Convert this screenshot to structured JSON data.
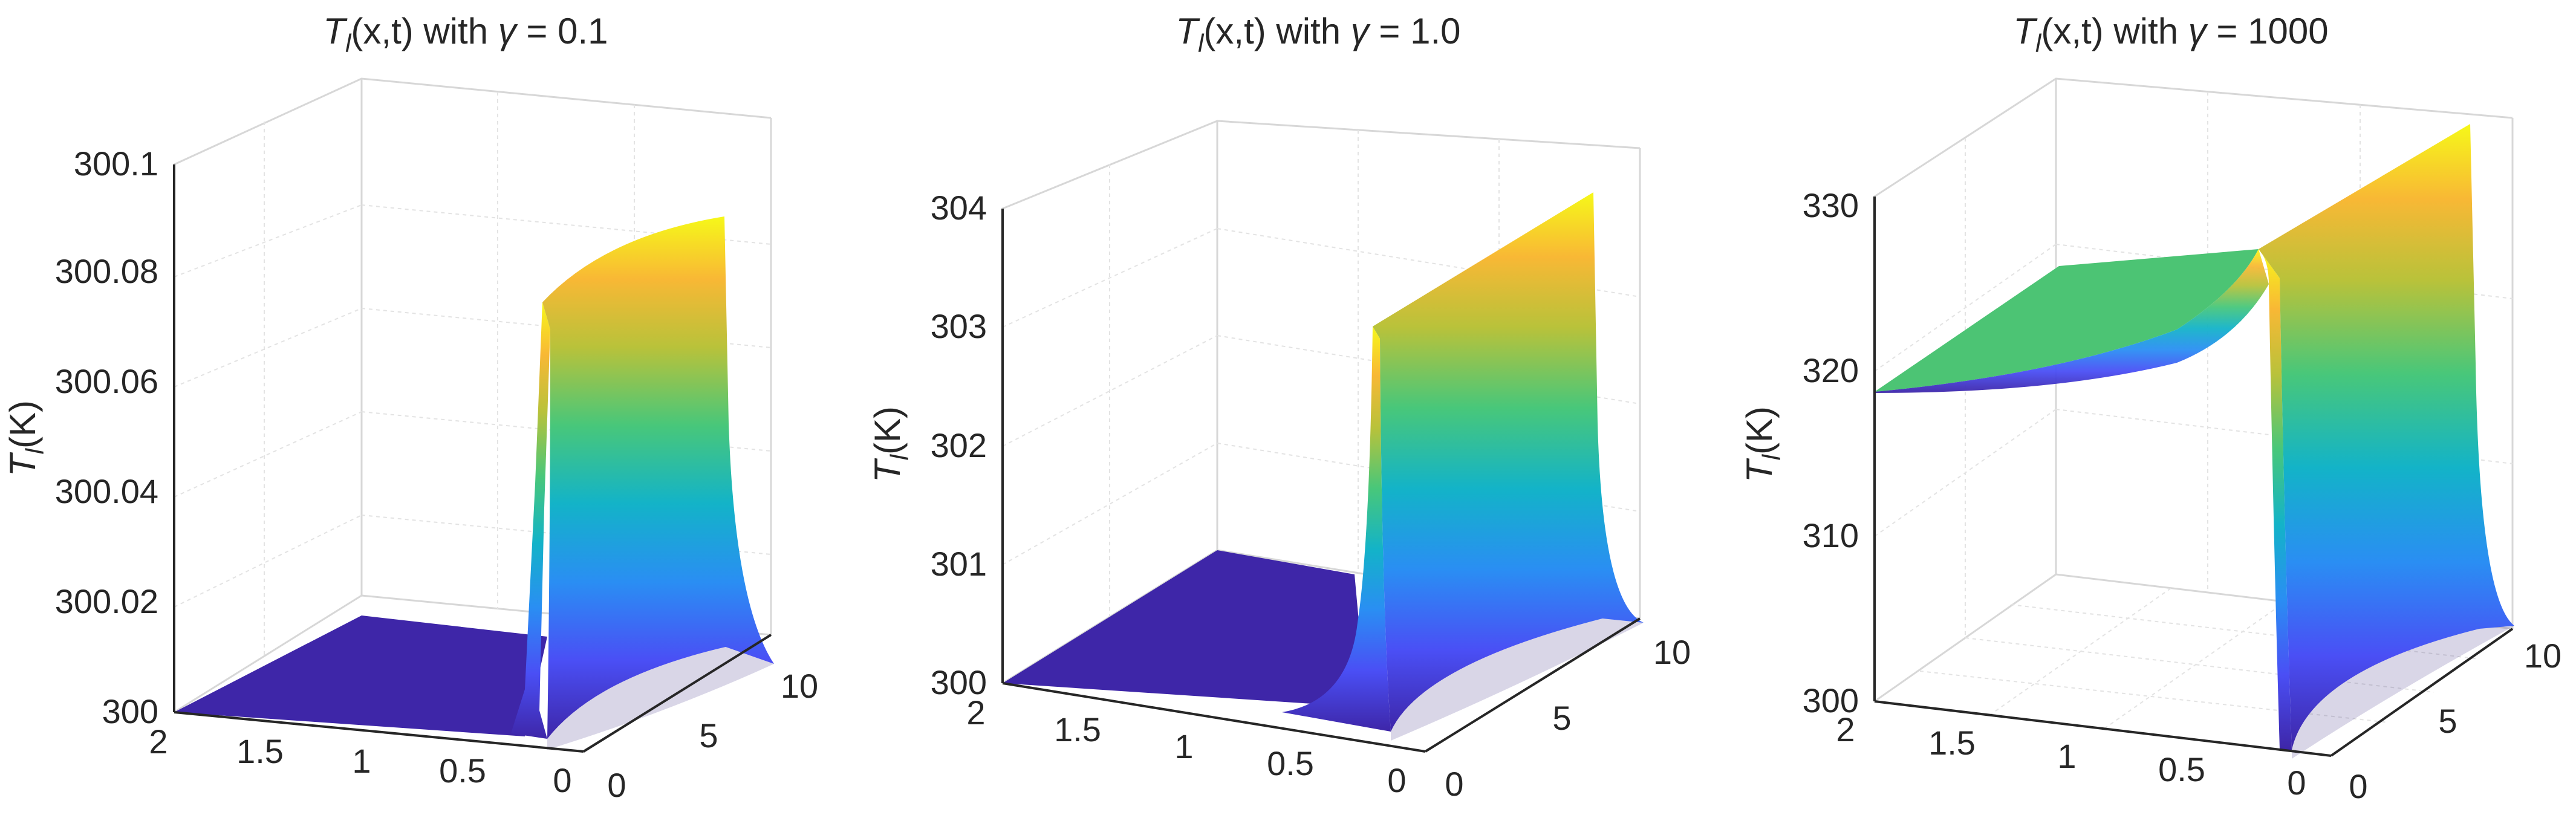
{
  "chart_data": [
    {
      "type": "surface",
      "title": {
        "prefix": "T",
        "sub": "l",
        "suffix": "(x,t) with ",
        "greek": "γ",
        "value": " = 0.1"
      },
      "zlabel": {
        "symbol": "T",
        "sub": "l",
        "unit": "(K)"
      },
      "x_ticks": [
        "2",
        "1.5",
        "1",
        "0.5",
        "0"
      ],
      "t_ticks": [
        "0",
        "5",
        "10"
      ],
      "z_ticks": [
        "300",
        "300.02",
        "300.04",
        "300.06",
        "300.08",
        "300.1"
      ],
      "xlim": [
        0,
        2
      ],
      "tlim": [
        0,
        10
      ],
      "zlim": [
        300,
        300.1
      ],
      "surface": {
        "base": 300,
        "pulse_peak_start": 300.074,
        "pulse_peak_end": 300.086,
        "tail_left_start": 300.0,
        "tail_left_end": 300.0
      }
    },
    {
      "type": "surface",
      "title": {
        "prefix": "T",
        "sub": "l",
        "suffix": "(x,t) with ",
        "greek": "γ",
        "value": " = 1.0"
      },
      "zlabel": {
        "symbol": "T",
        "sub": "l",
        "unit": "(K)"
      },
      "x_ticks": [
        "2",
        "1.5",
        "1",
        "0.5",
        "0"
      ],
      "t_ticks": [
        "0",
        "5",
        "10"
      ],
      "z_ticks": [
        "300",
        "301",
        "302",
        "303",
        "304"
      ],
      "xlim": [
        0,
        2
      ],
      "tlim": [
        0,
        10
      ],
      "zlim": [
        300,
        304
      ],
      "surface": {
        "base": 300,
        "pulse_peak_start": 303.0,
        "pulse_peak_end": 304.0,
        "tail_left_start": 300.0,
        "tail_left_end": 300.0
      }
    },
    {
      "type": "surface",
      "title": {
        "prefix": "T",
        "sub": "l",
        "suffix": "(x,t) with ",
        "greek": "γ",
        "value": " = 1000"
      },
      "zlabel": {
        "symbol": "T",
        "sub": "l",
        "unit": "(K)"
      },
      "x_ticks": [
        "2",
        "1.5",
        "1",
        "0.5",
        "0"
      ],
      "t_ticks": [
        "0",
        "5",
        "10"
      ],
      "z_ticks": [
        "300",
        "310",
        "320",
        "330"
      ],
      "xlim": [
        0,
        2
      ],
      "tlim": [
        0,
        10
      ],
      "zlim": [
        300,
        333
      ],
      "surface": {
        "base": 300,
        "pulse_peak_start": 323,
        "pulse_peak_end": 332.5,
        "tail_left_start": 318.5,
        "tail_left_end": 320.5
      }
    }
  ]
}
